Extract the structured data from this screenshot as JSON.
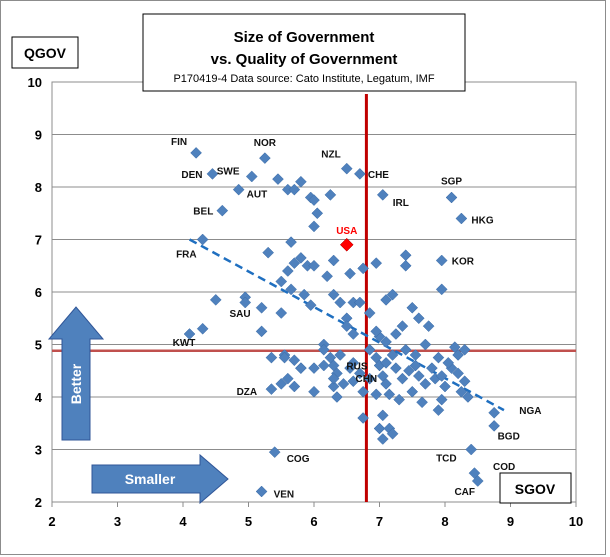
{
  "chart_data": {
    "type": "scatter",
    "title": "Size of Government",
    "title_line2": "vs. Quality of Government",
    "subtitle": "P170419-4 Data source: Cato Institute, Legatum,  IMF",
    "ylabel": "QGOV",
    "xlabel": "SGOV",
    "xlim": [
      2,
      10
    ],
    "ylim": [
      2,
      10
    ],
    "xticks": [
      "2",
      "3",
      "4",
      "5",
      "6",
      "7",
      "8",
      "9",
      "10"
    ],
    "yticks": [
      "2",
      "3",
      "4",
      "5",
      "6",
      "7",
      "8",
      "9",
      "10"
    ],
    "grid": true,
    "colors": {
      "points": "#4f81bd",
      "highlight": "#ff0000",
      "reference_line": "#c0504d",
      "vertical_line": "#c00000",
      "trend": "#1f6fc0",
      "arrow": "#4f81bd"
    },
    "reference_lines": {
      "x": 6.8,
      "y": 4.88
    },
    "trend_line": {
      "x": [
        4.1,
        8.9
      ],
      "y": [
        7.0,
        3.75
      ]
    },
    "highlight": {
      "name": "USA",
      "x": 6.5,
      "y": 6.9
    },
    "arrows": {
      "better": "Better",
      "smaller": "Smaller"
    },
    "labels": [
      {
        "text": "FIN",
        "x": 4.2,
        "y": 8.65
      },
      {
        "text": "NOR",
        "x": 5.25,
        "y": 8.55
      },
      {
        "text": "DEN",
        "x": 4.45,
        "y": 8.25
      },
      {
        "text": "SWE",
        "x": 5.0,
        "y": 8.2
      },
      {
        "text": "NZL",
        "x": 6.5,
        "y": 8.35
      },
      {
        "text": "CHE",
        "x": 6.7,
        "y": 8.25
      },
      {
        "text": "SGP",
        "x": 8.1,
        "y": 7.8
      },
      {
        "text": "AUT",
        "x": 4.85,
        "y": 7.95
      },
      {
        "text": "IRL",
        "x": 7.05,
        "y": 7.85
      },
      {
        "text": "BEL",
        "x": 4.6,
        "y": 7.55
      },
      {
        "text": "HKG",
        "x": 8.25,
        "y": 7.4
      },
      {
        "text": "FRA",
        "x": 4.3,
        "y": 7.0
      },
      {
        "text": "KOR",
        "x": 7.95,
        "y": 6.6
      },
      {
        "text": "SAU",
        "x": 5.2,
        "y": 5.7
      },
      {
        "text": "KWT",
        "x": 4.25,
        "y": 5.3
      },
      {
        "text": "RUS",
        "x": 6.25,
        "y": 4.7
      },
      {
        "text": "CHN",
        "x": 6.45,
        "y": 4.5
      },
      {
        "text": "DZA",
        "x": 5.3,
        "y": 4.15
      },
      {
        "text": "NGA",
        "x": 8.95,
        "y": 3.75
      },
      {
        "text": "BGD",
        "x": 8.65,
        "y": 3.4
      },
      {
        "text": "COG",
        "x": 5.4,
        "y": 2.95
      },
      {
        "text": "TCD",
        "x": 8.3,
        "y": 3.0
      },
      {
        "text": "COD",
        "x": 8.55,
        "y": 2.55
      },
      {
        "text": "CAF",
        "x": 8.55,
        "y": 2.4
      },
      {
        "text": "VEN",
        "x": 5.2,
        "y": 2.2
      }
    ],
    "series": [
      {
        "points": [
          [
            4.2,
            8.65
          ],
          [
            5.25,
            8.55
          ],
          [
            4.45,
            8.25
          ],
          [
            5.05,
            8.2
          ],
          [
            6.5,
            8.35
          ],
          [
            6.7,
            8.25
          ],
          [
            8.1,
            7.8
          ],
          [
            4.85,
            7.95
          ],
          [
            7.05,
            7.85
          ],
          [
            4.6,
            7.55
          ],
          [
            8.25,
            7.4
          ],
          [
            4.3,
            7.0
          ],
          [
            7.95,
            6.6
          ],
          [
            5.2,
            5.7
          ],
          [
            4.3,
            5.3
          ],
          [
            4.1,
            5.2
          ],
          [
            5.2,
            5.25
          ],
          [
            4.5,
            5.85
          ],
          [
            4.95,
            5.9
          ],
          [
            4.95,
            5.8
          ],
          [
            5.5,
            5.6
          ],
          [
            5.45,
            8.15
          ],
          [
            5.6,
            7.95
          ],
          [
            5.7,
            7.95
          ],
          [
            5.8,
            8.1
          ],
          [
            5.95,
            7.8
          ],
          [
            6.0,
            7.75
          ],
          [
            6.25,
            7.85
          ],
          [
            6.05,
            7.5
          ],
          [
            6.0,
            7.25
          ],
          [
            5.65,
            6.95
          ],
          [
            5.3,
            6.75
          ],
          [
            5.8,
            6.65
          ],
          [
            5.9,
            6.5
          ],
          [
            6.0,
            6.5
          ],
          [
            5.6,
            6.4
          ],
          [
            5.7,
            6.55
          ],
          [
            6.3,
            6.6
          ],
          [
            6.75,
            6.45
          ],
          [
            6.95,
            6.55
          ],
          [
            7.4,
            6.7
          ],
          [
            7.4,
            6.5
          ],
          [
            7.95,
            6.05
          ],
          [
            6.2,
            6.3
          ],
          [
            5.5,
            6.2
          ],
          [
            5.65,
            6.05
          ],
          [
            5.85,
            5.95
          ],
          [
            5.95,
            5.75
          ],
          [
            6.3,
            5.95
          ],
          [
            6.4,
            5.8
          ],
          [
            6.6,
            5.8
          ],
          [
            6.7,
            5.8
          ],
          [
            6.55,
            6.35
          ],
          [
            6.85,
            5.6
          ],
          [
            7.1,
            5.85
          ],
          [
            7.2,
            5.95
          ],
          [
            7.5,
            5.7
          ],
          [
            7.6,
            5.5
          ],
          [
            7.75,
            5.35
          ],
          [
            7.35,
            5.35
          ],
          [
            7.25,
            5.2
          ],
          [
            7.1,
            5.05
          ],
          [
            7.0,
            5.15
          ],
          [
            6.95,
            5.25
          ],
          [
            6.5,
            5.5
          ],
          [
            6.5,
            5.35
          ],
          [
            6.6,
            5.2
          ],
          [
            6.15,
            5.0
          ],
          [
            5.55,
            4.8
          ],
          [
            5.7,
            4.7
          ],
          [
            5.8,
            4.55
          ],
          [
            6.15,
            4.6
          ],
          [
            6.0,
            4.55
          ],
          [
            6.3,
            4.6
          ],
          [
            6.55,
            4.55
          ],
          [
            6.7,
            4.45
          ],
          [
            6.6,
            4.3
          ],
          [
            6.45,
            4.25
          ],
          [
            6.3,
            4.2
          ],
          [
            6.35,
            4.0
          ],
          [
            6.75,
            4.1
          ],
          [
            6.85,
            4.35
          ],
          [
            6.95,
            4.05
          ],
          [
            7.0,
            4.6
          ],
          [
            7.05,
            4.4
          ],
          [
            7.1,
            4.25
          ],
          [
            7.25,
            4.55
          ],
          [
            7.35,
            4.35
          ],
          [
            7.45,
            4.5
          ],
          [
            7.55,
            4.6
          ],
          [
            7.6,
            4.4
          ],
          [
            7.7,
            4.25
          ],
          [
            7.8,
            4.55
          ],
          [
            7.85,
            4.35
          ],
          [
            7.95,
            4.4
          ],
          [
            8.0,
            4.2
          ],
          [
            8.1,
            4.55
          ],
          [
            8.2,
            4.45
          ],
          [
            8.25,
            4.1
          ],
          [
            8.3,
            4.3
          ],
          [
            8.35,
            4.0
          ],
          [
            7.95,
            3.95
          ],
          [
            7.9,
            3.75
          ],
          [
            7.65,
            3.9
          ],
          [
            7.5,
            4.1
          ],
          [
            7.3,
            3.95
          ],
          [
            7.15,
            4.05
          ],
          [
            7.05,
            3.65
          ],
          [
            7.0,
            3.4
          ],
          [
            6.75,
            3.6
          ],
          [
            7.15,
            3.4
          ],
          [
            7.2,
            3.3
          ],
          [
            7.05,
            3.2
          ],
          [
            8.4,
            3.0
          ],
          [
            8.75,
            3.7
          ],
          [
            8.75,
            3.45
          ],
          [
            5.35,
            4.15
          ],
          [
            5.5,
            4.25
          ],
          [
            5.6,
            4.35
          ],
          [
            5.7,
            4.2
          ],
          [
            6.0,
            4.1
          ],
          [
            5.35,
            4.75
          ],
          [
            5.55,
            4.75
          ],
          [
            5.8,
            4.55
          ],
          [
            8.2,
            4.8
          ],
          [
            8.3,
            4.9
          ],
          [
            8.15,
            4.95
          ],
          [
            8.05,
            4.65
          ],
          [
            7.9,
            4.75
          ],
          [
            7.7,
            5.0
          ],
          [
            7.55,
            4.8
          ],
          [
            7.4,
            4.9
          ],
          [
            7.2,
            4.8
          ],
          [
            7.1,
            4.65
          ],
          [
            6.95,
            4.75
          ],
          [
            6.85,
            4.9
          ],
          [
            6.6,
            4.65
          ],
          [
            6.4,
            4.8
          ],
          [
            6.35,
            4.45
          ],
          [
            6.3,
            4.35
          ],
          [
            6.25,
            4.75
          ],
          [
            6.15,
            4.9
          ],
          [
            8.45,
            2.55
          ],
          [
            8.5,
            2.4
          ],
          [
            5.4,
            2.95
          ],
          [
            5.2,
            2.2
          ]
        ]
      }
    ]
  }
}
